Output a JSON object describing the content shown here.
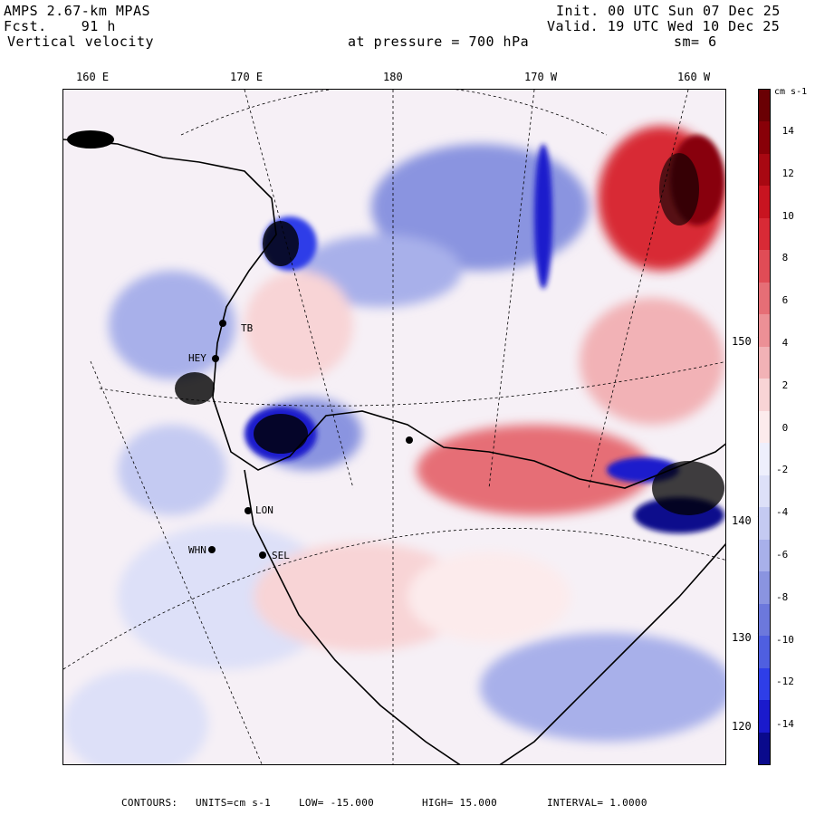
{
  "header": {
    "model": "AMPS 2.67-km MPAS",
    "fcst_label": "Fcst.",
    "fcst_value": "91 h",
    "field": "Vertical velocity",
    "init": "Init. 00 UTC Sun 07 Dec 25",
    "valid": "Valid. 19 UTC Wed 10 Dec 25",
    "pressure_label": "at pressure =",
    "pressure_value": "700 hPa",
    "smoothing": "sm= 6"
  },
  "longitude_labels": [
    "160 E",
    "170 E",
    "180",
    "170 W",
    "160 W"
  ],
  "latitude_labels": [
    "150 W",
    "140 W",
    "130 W",
    "120 W"
  ],
  "stations": [
    "TB",
    "HEY",
    "LON",
    "WHN",
    "SEL"
  ],
  "colorbar": {
    "unit": "cm s-1",
    "ticks": [
      "14",
      "12",
      "10",
      "8",
      "6",
      "4",
      "2",
      "0",
      "-2",
      "-4",
      "-6",
      "-8",
      "-10",
      "-12",
      "-14"
    ],
    "colors": [
      "#0a0a8c",
      "#1a1acc",
      "#2e3ee8",
      "#4f5fe0",
      "#6c78dc",
      "#8a94e0",
      "#a8b0ea",
      "#c4caf2",
      "#dde0f8",
      "#eeeffc",
      "#fcebec",
      "#f8d4d6",
      "#f2b2b6",
      "#ec9096",
      "#e66e76",
      "#e04c56",
      "#d82a36",
      "#c81420",
      "#a80812",
      "#880008",
      "#6a0004"
    ]
  },
  "footer": {
    "contours_label": "CONTOURS:",
    "units": "UNITS=cm s-1",
    "low": "LOW= -15.000",
    "high": "HIGH= 15.000",
    "interval": "INTERVAL= 1.0000"
  }
}
